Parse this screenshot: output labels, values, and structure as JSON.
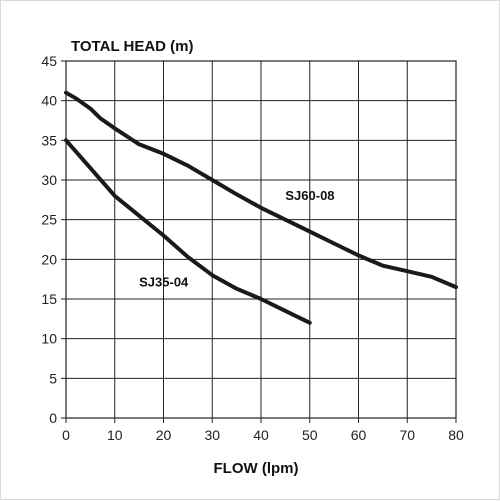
{
  "chart_data": {
    "type": "line",
    "title": "",
    "xlabel": "FLOW (lpm)",
    "ylabel": "TOTAL HEAD (m)",
    "xlim": [
      0,
      80
    ],
    "ylim": [
      0,
      45
    ],
    "xticks": [
      0,
      10,
      20,
      30,
      40,
      50,
      60,
      70,
      80
    ],
    "yticks": [
      0,
      5,
      10,
      15,
      20,
      25,
      30,
      35,
      40,
      45
    ],
    "grid": true,
    "legend": "none",
    "series": [
      {
        "name": "SJ60-08",
        "x": [
          0,
          2,
          5,
          7,
          10,
          15,
          20,
          25,
          30,
          35,
          40,
          45,
          50,
          55,
          60,
          65,
          70,
          75,
          80
        ],
        "values": [
          41,
          40.3,
          39,
          37.8,
          36.5,
          34.5,
          33.3,
          31.8,
          30,
          28.2,
          26.5,
          25,
          23.5,
          22,
          20.5,
          19.2,
          18.5,
          17.8,
          16.5
        ]
      },
      {
        "name": "SJ35-04",
        "x": [
          0,
          5,
          10,
          15,
          20,
          25,
          30,
          35,
          40,
          45,
          50
        ],
        "values": [
          35,
          31.5,
          28,
          25.5,
          23,
          20.3,
          18,
          16.3,
          15,
          13.5,
          12
        ]
      }
    ],
    "annotations": [
      {
        "text": "SJ60-08",
        "x": 45,
        "y": 27.5
      },
      {
        "text": "SJ35-04",
        "x": 15,
        "y": 16.6
      }
    ],
    "colors": {
      "line": "#1a1a1a",
      "grid": "#222222",
      "text": "#111111"
    }
  }
}
